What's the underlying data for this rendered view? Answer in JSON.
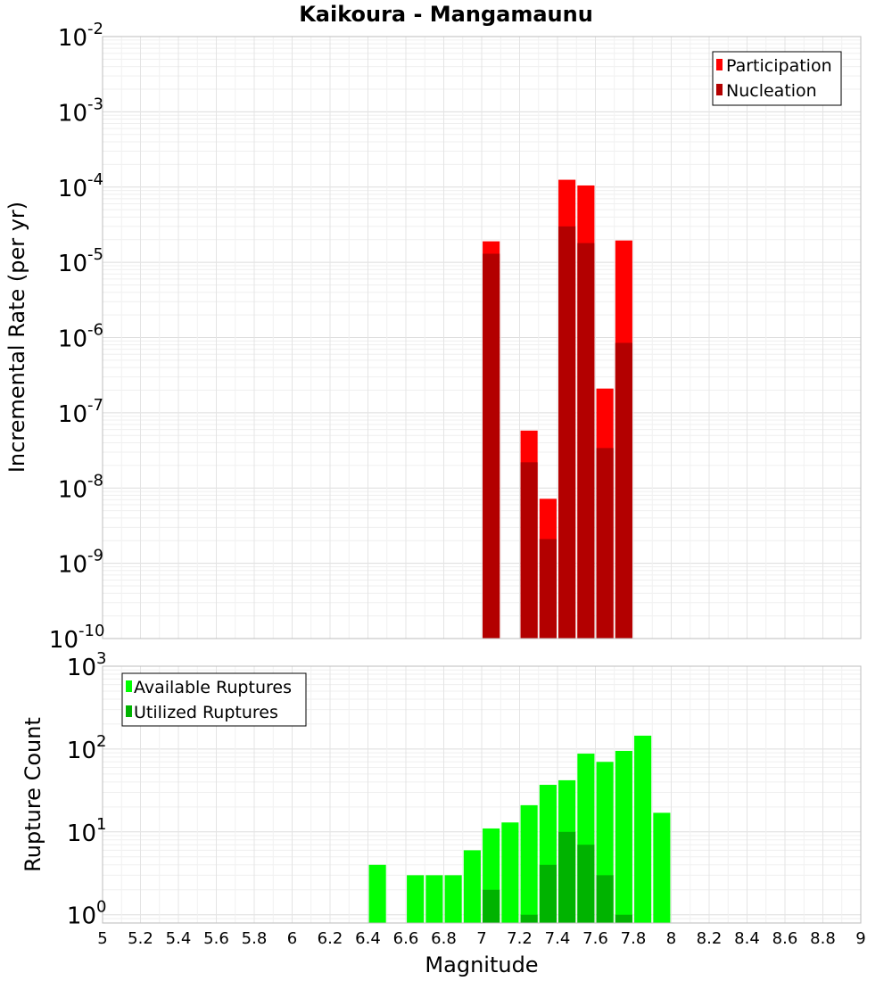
{
  "chart_data": [
    {
      "type": "bar",
      "title": "Kaikoura - Mangamaunu",
      "xlabel": "",
      "ylabel": "Incremental Rate (per yr)",
      "xlim": [
        5,
        9
      ],
      "ylim_log10": [
        -10,
        -2
      ],
      "yscale": "log",
      "grid": true,
      "legend_position": "top-right",
      "x": [
        7.05,
        7.25,
        7.35,
        7.45,
        7.55,
        7.65,
        7.75
      ],
      "series": [
        {
          "name": "Participation",
          "color": "#ff0000",
          "values": [
            1.9e-05,
            5.8e-08,
            7.2e-09,
            0.000125,
            0.000105,
            2.1e-07,
            1.95e-05
          ]
        },
        {
          "name": "Nucleation",
          "color": "#b30000",
          "values": [
            1.3e-05,
            2.2e-08,
            2.1e-09,
            3e-05,
            1.8e-05,
            3.4e-08,
            8.5e-07
          ]
        }
      ]
    },
    {
      "type": "bar",
      "title": "",
      "xlabel": "Magnitude",
      "ylabel": "Rupture Count",
      "xlim": [
        5,
        9
      ],
      "ylim_log10": [
        -0.1,
        3
      ],
      "yscale": "log",
      "grid": true,
      "legend_position": "top-left",
      "x": [
        6.45,
        6.65,
        6.75,
        6.85,
        6.95,
        7.05,
        7.15,
        7.25,
        7.35,
        7.45,
        7.55,
        7.65,
        7.75,
        7.85,
        7.95
      ],
      "series": [
        {
          "name": "Available Ruptures",
          "color": "#00ff00",
          "values": [
            4,
            3,
            3,
            3,
            6,
            11,
            13,
            21,
            37,
            42,
            88,
            70,
            95,
            145,
            17
          ]
        },
        {
          "name": "Utilized Ruptures",
          "color": "#00b300",
          "values": [
            0,
            0,
            0,
            0,
            0,
            2,
            0,
            1,
            4,
            10,
            7,
            3,
            1,
            0,
            0
          ]
        }
      ],
      "x_ticks": [
        "5",
        "5.2",
        "5.4",
        "5.6",
        "5.8",
        "6",
        "6.2",
        "6.4",
        "6.6",
        "6.8",
        "7",
        "7.2",
        "7.4",
        "7.6",
        "7.8",
        "8",
        "8.2",
        "8.4",
        "8.6",
        "8.8",
        "9"
      ]
    }
  ],
  "top_y_ticks": [
    {
      "base": "10",
      "exp": "-2"
    },
    {
      "base": "10",
      "exp": "-3"
    },
    {
      "base": "10",
      "exp": "-4"
    },
    {
      "base": "10",
      "exp": "-5"
    },
    {
      "base": "10",
      "exp": "-6"
    },
    {
      "base": "10",
      "exp": "-7"
    },
    {
      "base": "10",
      "exp": "-8"
    },
    {
      "base": "10",
      "exp": "-9"
    },
    {
      "base": "10",
      "exp": "-10"
    }
  ],
  "bottom_y_ticks": [
    {
      "base": "10",
      "exp": "3"
    },
    {
      "base": "10",
      "exp": "2"
    },
    {
      "base": "10",
      "exp": "1"
    },
    {
      "base": "10",
      "exp": "0"
    }
  ]
}
